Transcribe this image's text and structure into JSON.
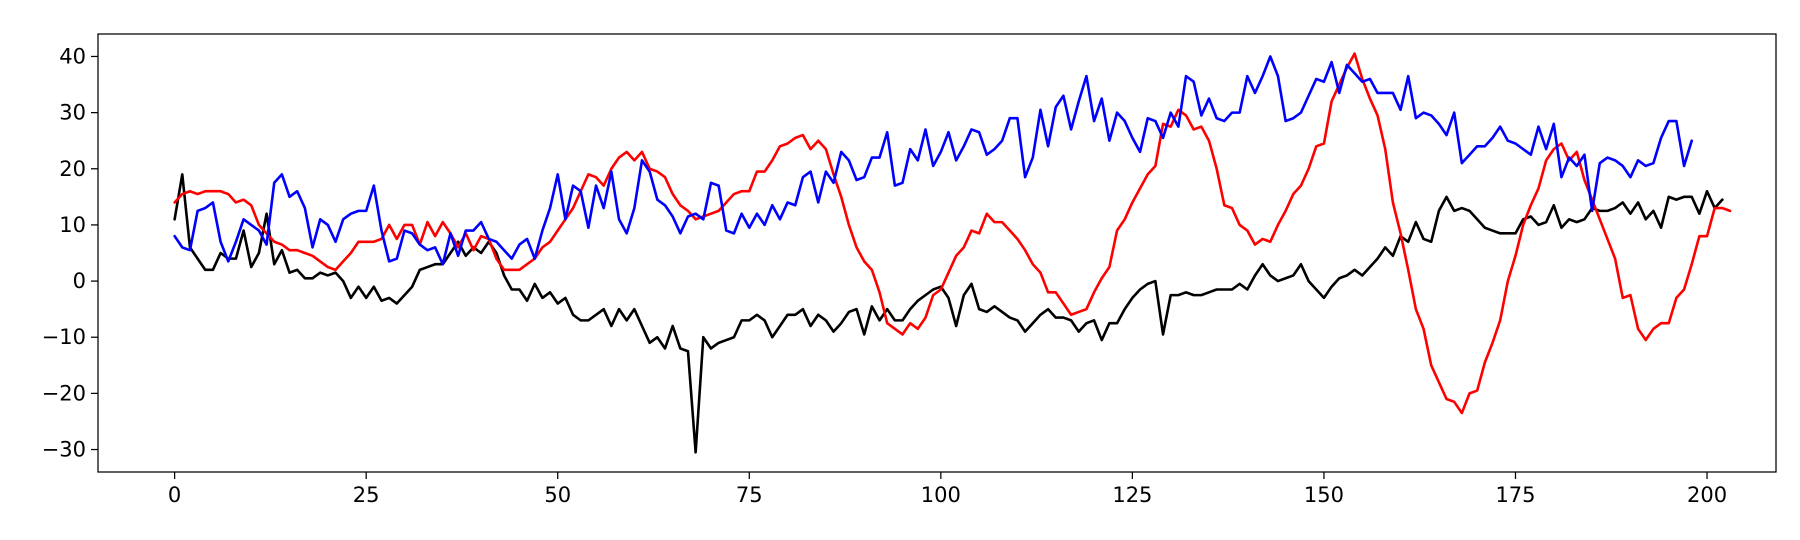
{
  "chart_data": {
    "type": "line",
    "title": "",
    "xlabel": "",
    "ylabel": "",
    "xlim": [
      -10,
      209
    ],
    "ylim": [
      -34,
      44
    ],
    "xticks": [
      0,
      25,
      50,
      75,
      100,
      125,
      150,
      175,
      200
    ],
    "yticks": [
      -30,
      -20,
      -10,
      0,
      10,
      20,
      30,
      40
    ],
    "grid": false,
    "legend": "none",
    "x": {
      "start": 0,
      "step": 1,
      "count": 200
    },
    "series": [
      {
        "color": "#000000",
        "values": [
          11,
          19,
          6,
          4,
          2,
          2,
          5,
          4,
          4,
          9,
          2.5,
          5,
          12,
          3,
          5.5,
          1.5,
          2,
          0.5,
          0.5,
          1.5,
          1,
          1.5,
          0,
          -3,
          -1,
          -3,
          -1,
          -3.5,
          -3,
          -4,
          -2.5,
          -1,
          2,
          2.5,
          3,
          3,
          5,
          7,
          4.5,
          6,
          5,
          7,
          5,
          1,
          -1.5,
          -1.5,
          -3.5,
          -0.5,
          -3,
          -2,
          -4,
          -3,
          -6,
          -7,
          -7,
          -6,
          -5,
          -8,
          -5,
          -7,
          -5,
          -8,
          -11,
          -10,
          -12,
          -8,
          -12,
          -12.5,
          -30.5,
          -10,
          -12,
          -11,
          -10.5,
          -10,
          -7,
          -7,
          -6,
          -7,
          -10,
          -8,
          -6,
          -6,
          -5,
          -8,
          -6,
          -7,
          -9,
          -7.5,
          -5.5,
          -5,
          -9.5,
          -4.5,
          -7,
          -5,
          -7,
          -7,
          -5,
          -3.5,
          -2.5,
          -1.5,
          -1,
          -3,
          -8,
          -2.5,
          -0.5,
          -5,
          -5.5,
          -4.5,
          -5.5,
          -6.5,
          -7,
          -9,
          -7.5,
          -6,
          -5,
          -6.5,
          -6.5,
          -7,
          -9,
          -7.5,
          -7,
          -10.5,
          -7.5,
          -7.5,
          -5,
          -3,
          -1.5,
          -0.5,
          0,
          -9.5,
          -2.5,
          -2.5,
          -2,
          -2.5,
          -2.5,
          -2,
          -1.5,
          -1.5,
          -1.5,
          -0.5,
          -1.5,
          1,
          3,
          1,
          0,
          0.5,
          1,
          3,
          0,
          -1.5,
          -3,
          -1,
          0.5,
          1,
          2,
          1,
          2.5,
          4,
          6,
          4.5,
          8,
          7,
          10.5,
          7.5,
          7,
          12.5,
          15,
          12.5,
          13,
          12.5,
          11,
          9.5,
          9,
          8.5,
          8.5,
          8.5,
          11,
          11.5,
          10,
          10.5,
          13.5,
          9.5,
          11,
          10.5,
          11,
          13,
          12.5,
          12.5,
          13,
          14,
          12,
          14,
          11,
          12.5,
          9.5,
          15,
          14.5,
          15,
          15,
          12,
          16,
          13,
          14.5
        ]
      },
      {
        "color": "#ff0000",
        "values": [
          14,
          15.5,
          16,
          15.5,
          16,
          16,
          16,
          15.5,
          14,
          14.5,
          13.5,
          10,
          8.5,
          7,
          6.5,
          5.5,
          5.5,
          5,
          4.5,
          3.5,
          2.5,
          2,
          3.5,
          5,
          7,
          7,
          7,
          7.5,
          10,
          7.5,
          10,
          10,
          6.5,
          10.5,
          8,
          10.5,
          8.5,
          6,
          8.5,
          5.5,
          8,
          7.5,
          4,
          2,
          2,
          2,
          3,
          4,
          6,
          7,
          9,
          11,
          13,
          16,
          19,
          18.5,
          17,
          20,
          22,
          23,
          21.5,
          23,
          20,
          19.5,
          18.5,
          15.5,
          13.5,
          12.5,
          11,
          11.5,
          12,
          12.5,
          14,
          15.5,
          16,
          16,
          19.5,
          19.5,
          21.5,
          24,
          24.5,
          25.5,
          26,
          23.5,
          25,
          23.5,
          19,
          15,
          10,
          6,
          3.5,
          2,
          -2,
          -7.5,
          -8.5,
          -9.5,
          -7.5,
          -8.5,
          -6.5,
          -2.5,
          -1.5,
          1.5,
          4.5,
          6,
          9,
          8.5,
          12,
          10.5,
          10.5,
          9,
          7.5,
          5.5,
          3,
          1.5,
          -2,
          -2,
          -4,
          -6,
          -5.5,
          -5,
          -2,
          0.5,
          2.5,
          9,
          11,
          14,
          16.5,
          19,
          20.5,
          28,
          27.5,
          30.5,
          29.5,
          27,
          27.5,
          25,
          20,
          13.5,
          13,
          10,
          9,
          6.5,
          7.5,
          7,
          10,
          12.5,
          15.5,
          17,
          20,
          24,
          24.5,
          32,
          35,
          38,
          40.5,
          36,
          32.5,
          29.5,
          23.5,
          14,
          8.5,
          2,
          -5,
          -8.5,
          -15,
          -18,
          -21,
          -21.5,
          -23.5,
          -20,
          -19.5,
          -14.5,
          -11,
          -7,
          0,
          4.5,
          10,
          13.5,
          16.5,
          21.5,
          23.5,
          24.5,
          21.5,
          23,
          18,
          14.5,
          11,
          7.5,
          4,
          -3,
          -2.5,
          -8.5,
          -10.5,
          -8.5,
          -7.5,
          -7.5,
          -3,
          -1.5,
          3,
          8,
          8,
          13,
          13,
          12.5
        ]
      },
      {
        "color": "#0000ff",
        "values": [
          8,
          6,
          5.5,
          12.5,
          13,
          14,
          7,
          3.5,
          7,
          11,
          10,
          9,
          6.5,
          17.5,
          19,
          15,
          16,
          13,
          6,
          11,
          10,
          7,
          11,
          12,
          12.5,
          12.5,
          17,
          9,
          3.5,
          4,
          9,
          8.5,
          6.5,
          5.5,
          6,
          3,
          8.5,
          4.5,
          9,
          9,
          10.5,
          7.5,
          7,
          5.5,
          4,
          6.5,
          7.5,
          4,
          9,
          13,
          19,
          11,
          17,
          16,
          9.5,
          17,
          13,
          19.5,
          11,
          8.5,
          13,
          21.5,
          19.5,
          14.5,
          13.5,
          11.5,
          8.5,
          11.5,
          12,
          11,
          17.5,
          17,
          9,
          8.5,
          12,
          9.5,
          12,
          10,
          13.5,
          11,
          14,
          13.5,
          18.5,
          19.5,
          14,
          19.5,
          17.5,
          23,
          21.5,
          18,
          18.5,
          22,
          22,
          26.5,
          17,
          17.5,
          23.5,
          21.5,
          27,
          20.5,
          23,
          26.5,
          21.5,
          24,
          27,
          26.5,
          22.5,
          23.5,
          25,
          29,
          29,
          18.5,
          22,
          30.5,
          24,
          31,
          33,
          27,
          32,
          36.5,
          28.5,
          32.5,
          25,
          30,
          28.5,
          25.5,
          23,
          29,
          28.5,
          25.5,
          30,
          27.5,
          36.5,
          35.5,
          29.5,
          32.5,
          29,
          28.5,
          30,
          30,
          36.5,
          33.5,
          36.5,
          40,
          36.5,
          28.5,
          29,
          30,
          33,
          36,
          35.5,
          39,
          33.5,
          38.5,
          37,
          35.5,
          36,
          33.5,
          33.5,
          33.5,
          30.5,
          36.5,
          29,
          30,
          29.5,
          28,
          26,
          30,
          21,
          22.5,
          24,
          24,
          25.5,
          27.5,
          25,
          24.5,
          23.5,
          22.5,
          27.5,
          23.5,
          28,
          18.5,
          22,
          20.5,
          22.5,
          12.5,
          21,
          22,
          21.5,
          20.5,
          18.5,
          21.5,
          20.5,
          21,
          25.5,
          28.5,
          28.5,
          20.5,
          25
        ]
      }
    ]
  }
}
